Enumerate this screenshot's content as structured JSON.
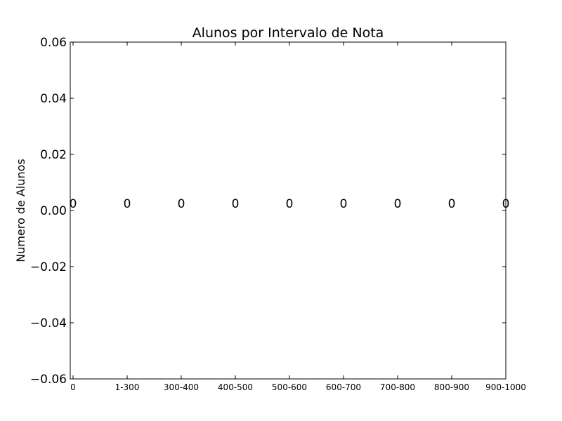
{
  "chart_data": {
    "type": "bar",
    "title": "Alunos por Intervalo de Nota",
    "xlabel": "",
    "ylabel": "Numero de Alunos",
    "categories": [
      "0",
      "1-300",
      "300-400",
      "400-500",
      "500-600",
      "600-700",
      "700-800",
      "800-900",
      "900-1000"
    ],
    "values": [
      0,
      0,
      0,
      0,
      0,
      0,
      0,
      0,
      0
    ],
    "data_labels": [
      "0",
      "0",
      "0",
      "0",
      "0",
      "0",
      "0",
      "0",
      "0"
    ],
    "ylim": [
      -0.06,
      0.06
    ],
    "yticks": [
      -0.06,
      -0.04,
      -0.02,
      0.0,
      0.02,
      0.04,
      0.06
    ],
    "ytick_labels": [
      "−0.06",
      "−0.04",
      "−0.02",
      "0.00",
      "0.02",
      "0.04",
      "0.06"
    ],
    "grid": false,
    "legend": "none",
    "bar_color": "#000000"
  }
}
